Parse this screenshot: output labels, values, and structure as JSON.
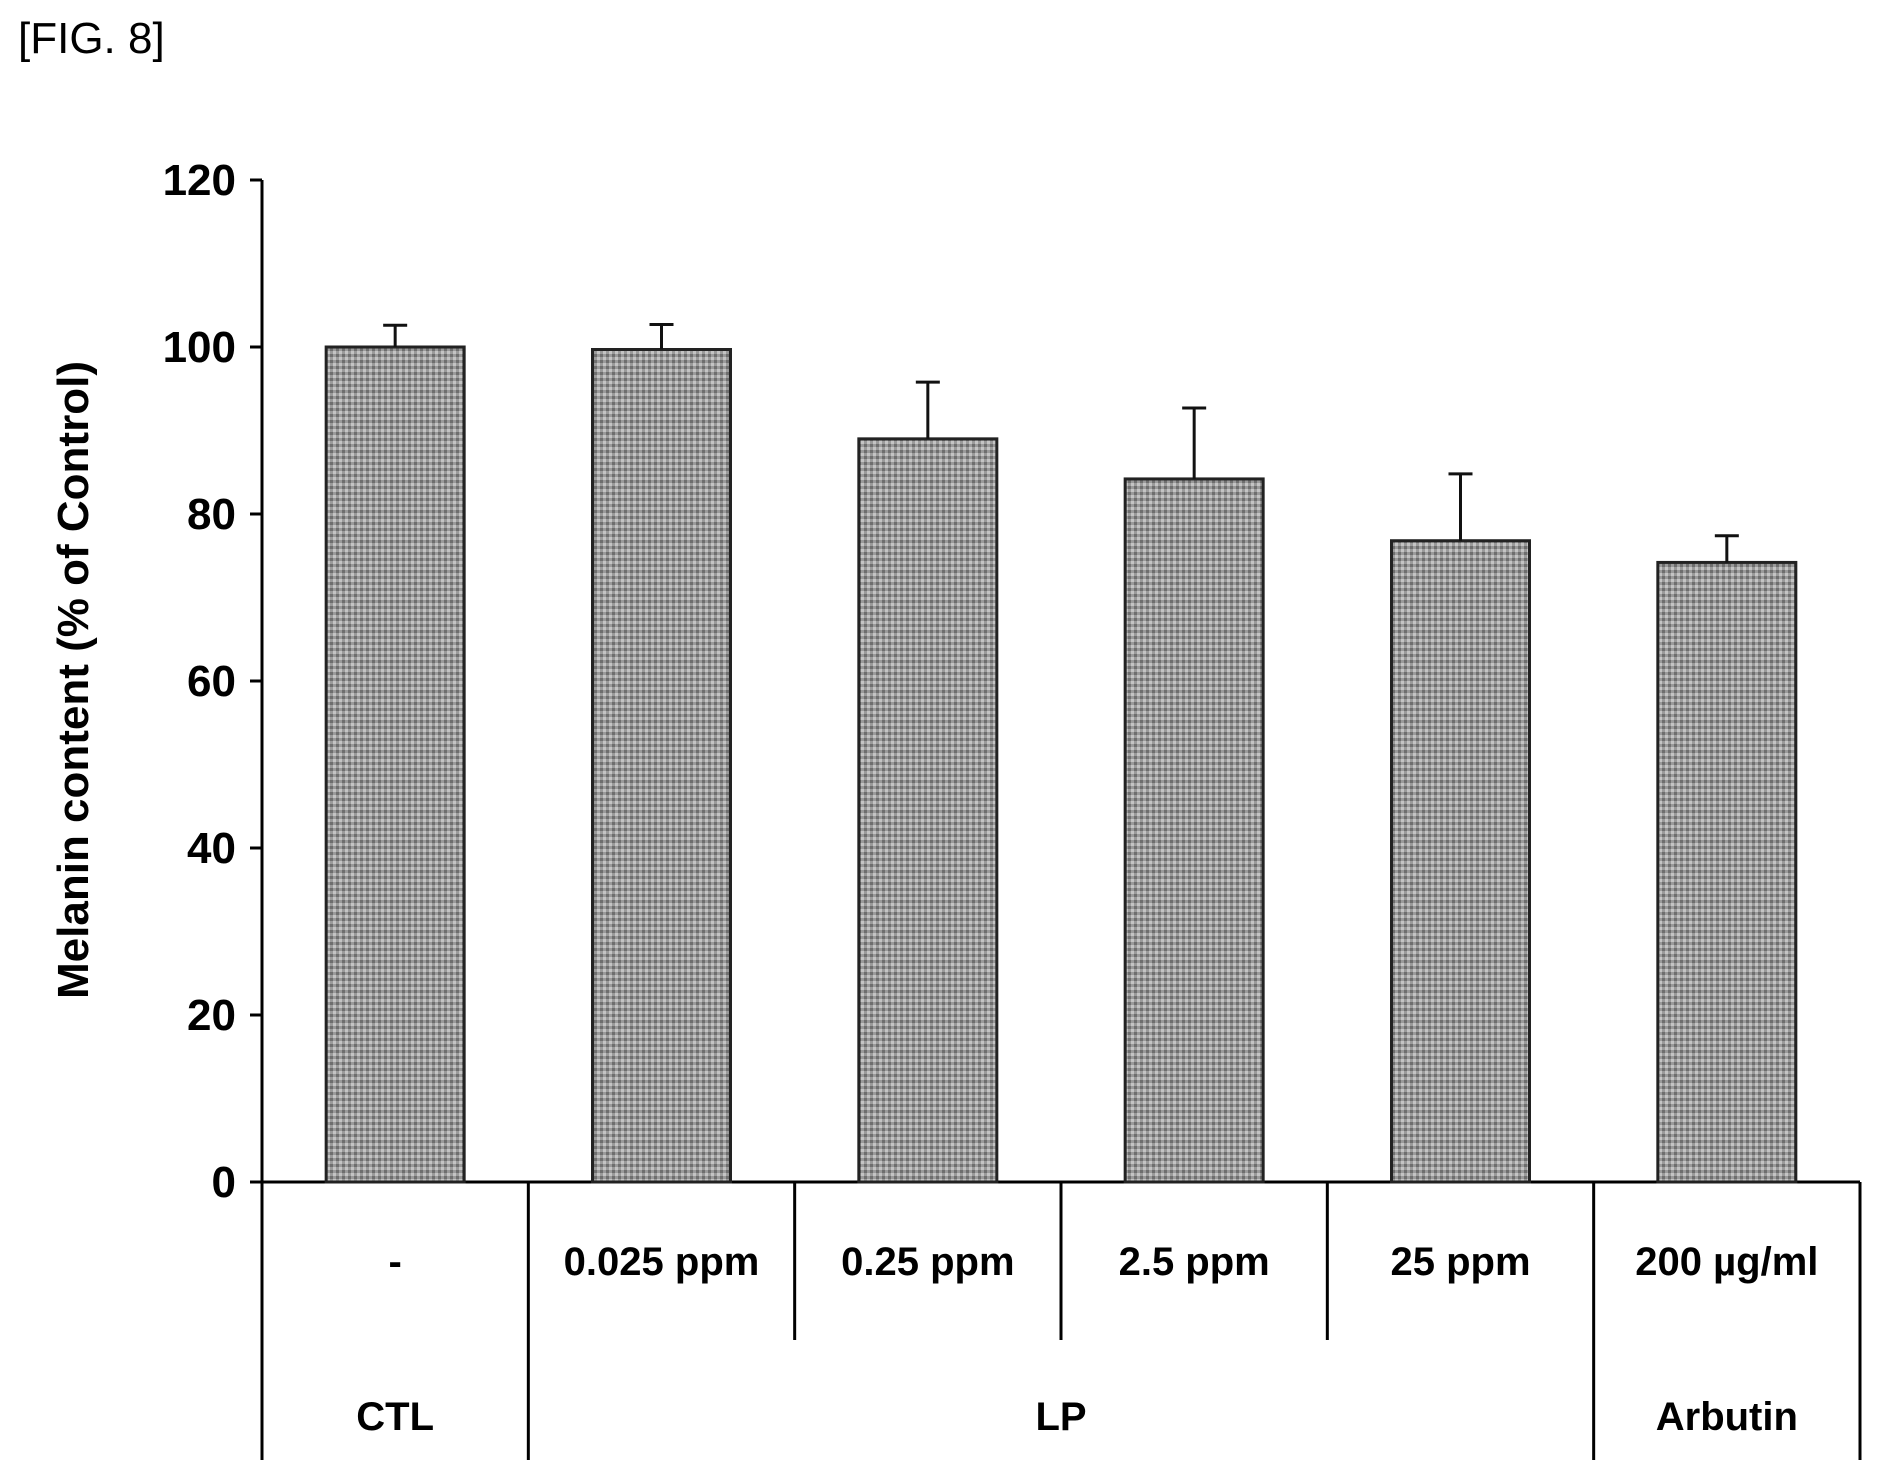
{
  "figure_label": "[FIG. 8]",
  "chart_data": {
    "type": "bar",
    "title": "",
    "xlabel": "",
    "ylabel": "Melanin content (% of Control)",
    "ylim": [
      0,
      120
    ],
    "yticks": [
      0,
      20,
      40,
      60,
      80,
      100,
      120
    ],
    "categories": [
      "-",
      "0.025 ppm",
      "0.25 ppm",
      "2.5 ppm",
      "25 ppm",
      "200 µg/ml"
    ],
    "groups": [
      {
        "label": "CTL",
        "members": [
          "-"
        ]
      },
      {
        "label": "LP",
        "members": [
          "0.025 ppm",
          "0.25 ppm",
          "2.5 ppm",
          "25 ppm"
        ]
      },
      {
        "label": "Arbutin",
        "members": [
          "200 µg/ml"
        ]
      }
    ],
    "values": [
      100,
      99.7,
      89,
      84.2,
      76.8,
      74.2
    ],
    "errors": [
      2.6,
      3.0,
      6.8,
      8.5,
      8.0,
      3.2
    ],
    "bar_color": "#8c8c8c",
    "grid": false,
    "legend": "none"
  }
}
